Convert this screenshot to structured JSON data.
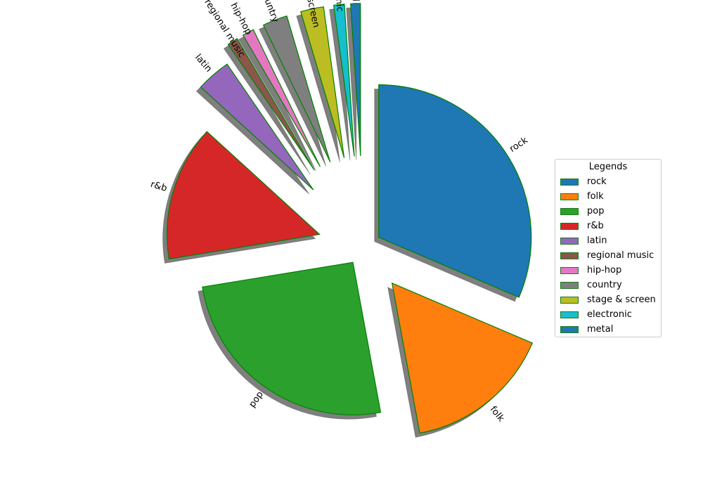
{
  "chart_data": {
    "type": "pie",
    "title": "",
    "legend_title": "Legends",
    "legend_position": "right",
    "shadow": true,
    "edge_color": "#008000",
    "categories": [
      "rock",
      "folk",
      "pop",
      "r&b",
      "latin",
      "regional music",
      "hip-hop",
      "country",
      "stage & screen",
      "electronic",
      "metal"
    ],
    "values": [
      33.5,
      16.7,
      27.0,
      15.3,
      3.9,
      1.2,
      1.3,
      2.8,
      2.6,
      1.2,
      1.1
    ],
    "explode": [
      0.12,
      0.3,
      0.12,
      0.3,
      0.5,
      0.6,
      0.6,
      0.6,
      0.6,
      0.6,
      0.6
    ],
    "colors": [
      "#1f77b4",
      "#ff7f0e",
      "#2ca02c",
      "#d62728",
      "#9467bd",
      "#8c564b",
      "#e377c2",
      "#7f7f7f",
      "#bcbd22",
      "#17becf",
      "#1f77b4"
    ],
    "start_angle": 90,
    "direction": "clockwise"
  }
}
